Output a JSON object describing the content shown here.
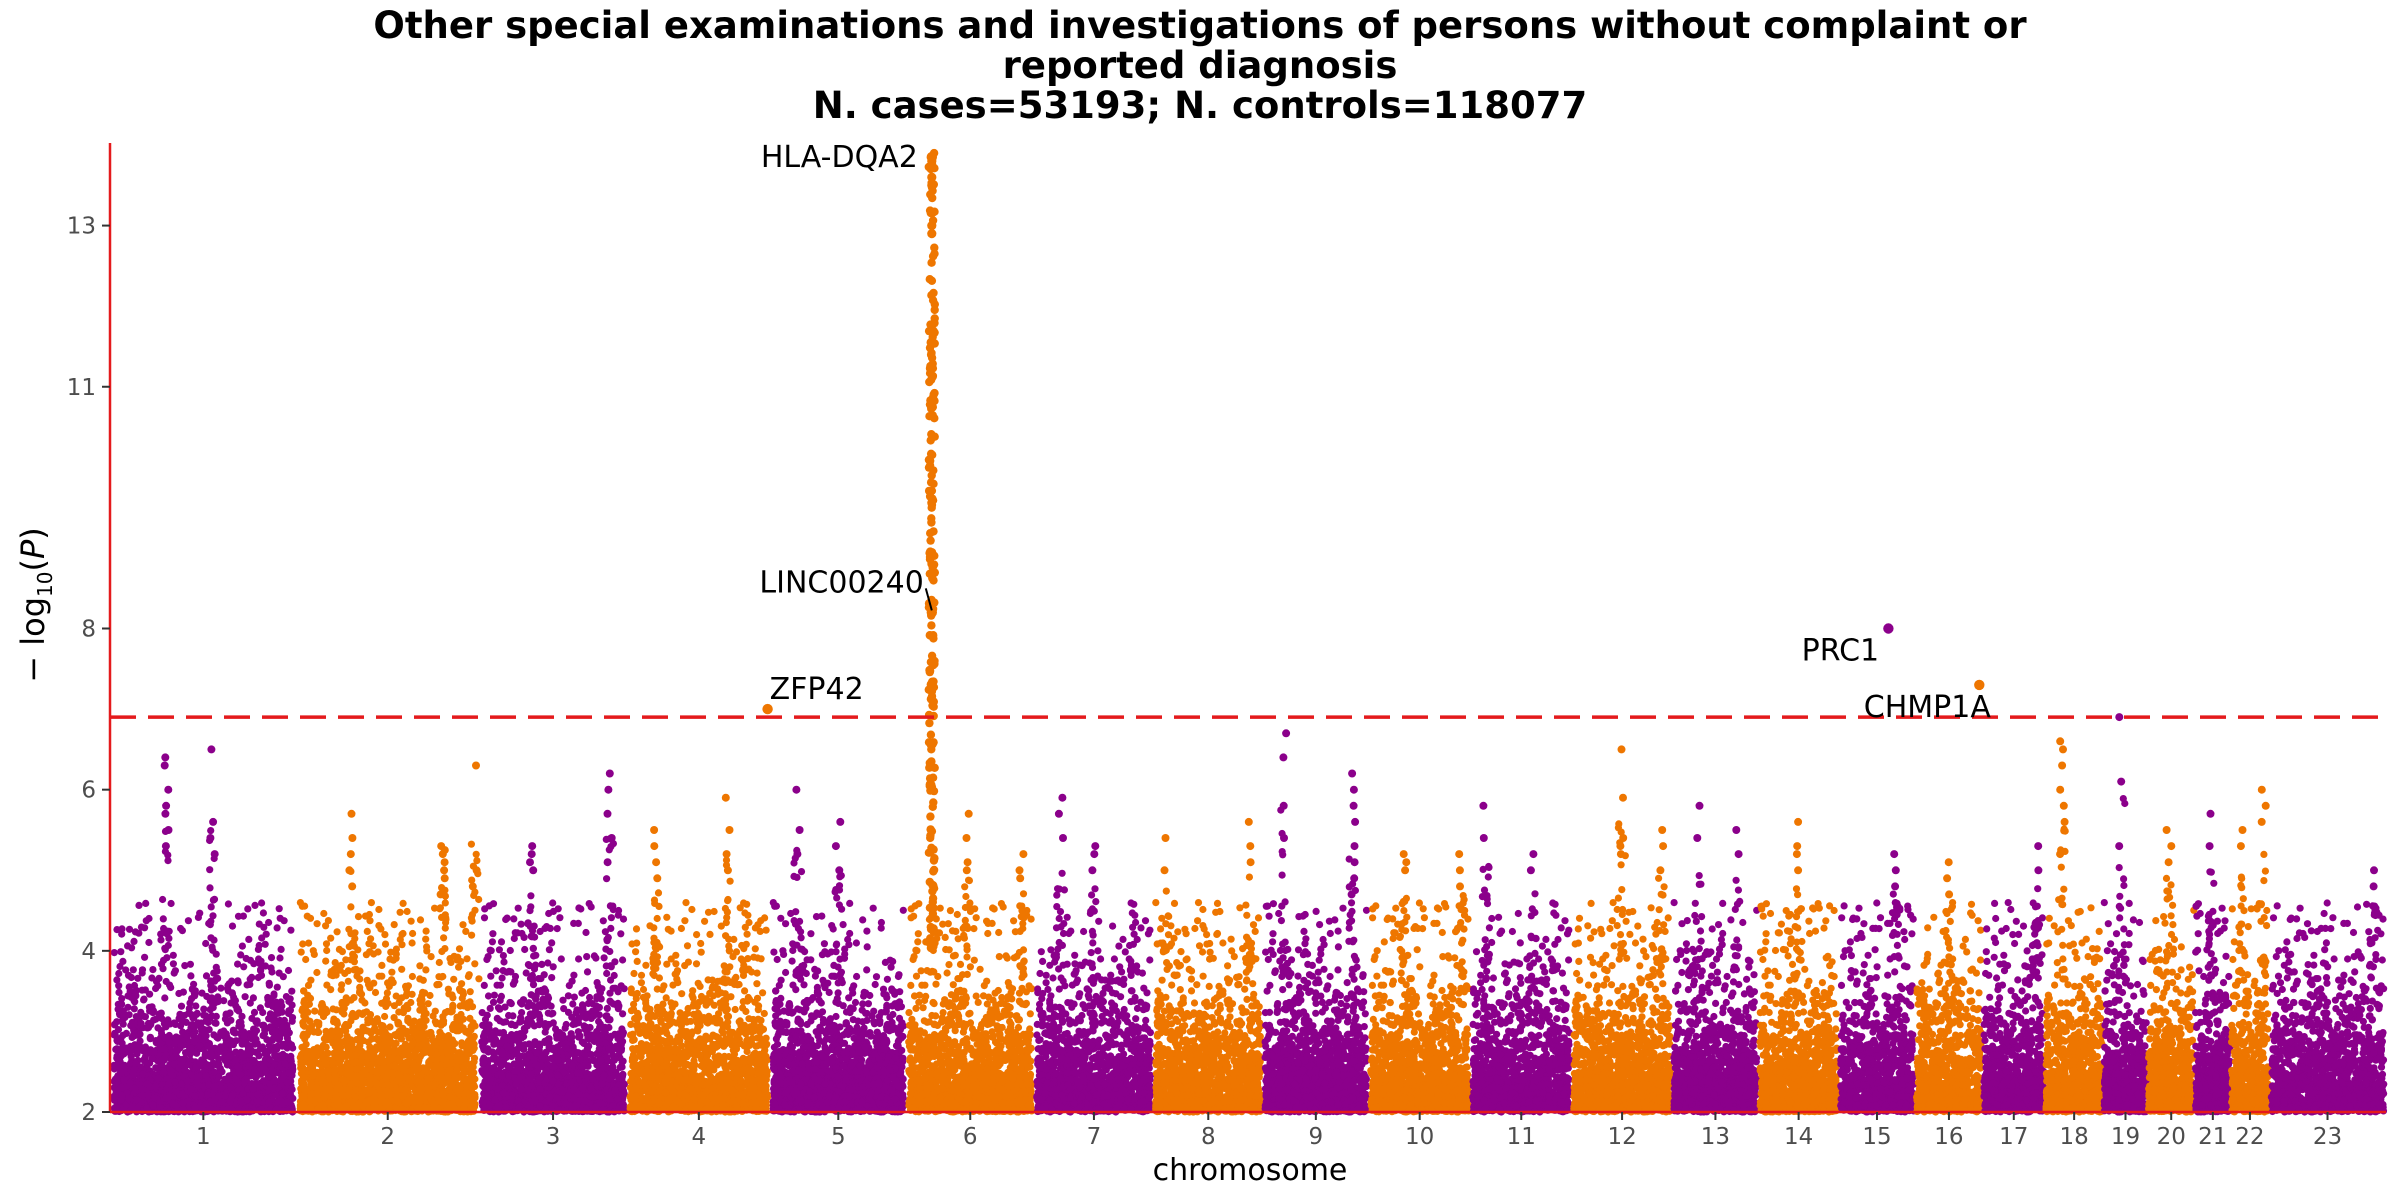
{
  "chart_data": {
    "type": "scatter",
    "title": [
      "Other special examinations and investigations of persons without complaint or",
      "reported diagnosis",
      "N. cases=53193; N. controls=118077"
    ],
    "xlabel": "chromosome",
    "ylabel": "−log10(P)",
    "ylim": [
      2,
      14
    ],
    "y_ticks": [
      2,
      4,
      6,
      8,
      11,
      13
    ],
    "significance_threshold": 6.9,
    "grid": false,
    "legend": "none",
    "colors": {
      "odd": "#8b008b",
      "even": "#ee7600",
      "threshold": "#e41a1c",
      "axis": "#e41a1c"
    },
    "chromosomes": [
      "1",
      "2",
      "3",
      "4",
      "5",
      "6",
      "7",
      "8",
      "9",
      "10",
      "11",
      "12",
      "13",
      "14",
      "15",
      "16",
      "17",
      "18",
      "19",
      "20",
      "21",
      "22",
      "23"
    ],
    "chromosome_widths": [
      249,
      243,
      198,
      191,
      181,
      171,
      159,
      146,
      141,
      136,
      135,
      134,
      115,
      107,
      102,
      90,
      83,
      78,
      59,
      63,
      48,
      51,
      156
    ],
    "peak_loci": [
      {
        "chr": "1",
        "pos": 0.3,
        "values": [
          5.5,
          5.8,
          6.0,
          6.3,
          6.4,
          5.7,
          5.3
        ]
      },
      {
        "chr": "1",
        "pos": 0.55,
        "values": [
          6.5,
          5.6,
          5.4,
          5.2
        ]
      },
      {
        "chr": "2",
        "pos": 0.3,
        "values": [
          5.7,
          5.4,
          5.2,
          5.0,
          4.8
        ]
      },
      {
        "chr": "2",
        "pos": 0.8,
        "values": [
          5.3,
          5.25,
          5.2,
          5.1,
          5.0,
          4.9,
          4.7
        ]
      },
      {
        "chr": "2",
        "pos": 0.98,
        "values": [
          6.3,
          5.0,
          4.8
        ]
      },
      {
        "chr": "3",
        "pos": 0.35,
        "values": [
          5.3,
          5.2,
          5.1,
          5.0
        ]
      },
      {
        "chr": "3",
        "pos": 0.88,
        "values": [
          6.2,
          6.0,
          5.7,
          5.4,
          5.1
        ]
      },
      {
        "chr": "4",
        "pos": 0.2,
        "values": [
          5.5,
          5.3,
          5.1,
          4.9
        ]
      },
      {
        "chr": "4",
        "pos": 0.7,
        "values": [
          5.9,
          5.5,
          5.2,
          5.0
        ]
      },
      {
        "chr": "5",
        "pos": 0.2,
        "values": [
          6.0,
          5.5,
          5.2
        ]
      },
      {
        "chr": "5",
        "pos": 0.5,
        "values": [
          5.6,
          5.3,
          5.0
        ]
      },
      {
        "chr": "6",
        "pos": 0.47,
        "values": [
          5.7,
          5.4,
          5.1,
          5.0
        ]
      },
      {
        "chr": "6",
        "pos": 0.9,
        "values": [
          5.2,
          5.0,
          4.9
        ]
      },
      {
        "chr": "7",
        "pos": 0.22,
        "values": [
          5.9,
          5.7,
          5.4
        ]
      },
      {
        "chr": "7",
        "pos": 0.5,
        "values": [
          5.3,
          5.2,
          5.0
        ]
      },
      {
        "chr": "8",
        "pos": 0.12,
        "values": [
          5.4,
          5.0
        ]
      },
      {
        "chr": "8",
        "pos": 0.88,
        "values": [
          5.6,
          5.3,
          5.1
        ]
      },
      {
        "chr": "9",
        "pos": 0.2,
        "values": [
          6.7,
          6.4,
          5.8,
          5.4
        ]
      },
      {
        "chr": "9",
        "pos": 0.85,
        "values": [
          6.2,
          6.0,
          5.8,
          5.6,
          5.3,
          5.1,
          4.9,
          4.7
        ]
      },
      {
        "chr": "10",
        "pos": 0.35,
        "values": [
          5.2,
          5.1,
          5.0
        ]
      },
      {
        "chr": "10",
        "pos": 0.9,
        "values": [
          5.2,
          5.0,
          4.8
        ]
      },
      {
        "chr": "11",
        "pos": 0.15,
        "values": [
          5.8,
          5.4
        ]
      },
      {
        "chr": "11",
        "pos": 0.62,
        "values": [
          5.2,
          5.0
        ]
      },
      {
        "chr": "12",
        "pos": 0.5,
        "values": [
          6.5,
          5.9,
          5.4,
          5.3,
          5.2
        ]
      },
      {
        "chr": "12",
        "pos": 0.9,
        "values": [
          5.5,
          5.3,
          5.0
        ]
      },
      {
        "chr": "13",
        "pos": 0.3,
        "values": [
          5.8,
          5.4
        ]
      },
      {
        "chr": "13",
        "pos": 0.75,
        "values": [
          5.5,
          5.2
        ]
      },
      {
        "chr": "14",
        "pos": 0.5,
        "values": [
          5.6,
          5.3,
          5.2,
          5.0
        ]
      },
      {
        "chr": "15",
        "pos": 0.75,
        "values": [
          5.2,
          5.0,
          4.8
        ]
      },
      {
        "chr": "16",
        "pos": 0.5,
        "values": [
          5.1,
          4.9,
          4.7
        ]
      },
      {
        "chr": "17",
        "pos": 0.9,
        "values": [
          5.3,
          5.0
        ]
      },
      {
        "chr": "18",
        "pos": 0.3,
        "values": [
          6.6,
          6.5,
          6.3,
          6.0,
          5.8,
          5.6,
          5.2
        ]
      },
      {
        "chr": "19",
        "pos": 0.4,
        "values": [
          6.9,
          6.1,
          5.3
        ]
      },
      {
        "chr": "20",
        "pos": 0.45,
        "values": [
          5.5,
          5.3,
          5.1
        ]
      },
      {
        "chr": "21",
        "pos": 0.45,
        "values": [
          5.7,
          5.3
        ]
      },
      {
        "chr": "22",
        "pos": 0.3,
        "values": [
          5.5,
          5.3
        ]
      },
      {
        "chr": "22",
        "pos": 0.85,
        "values": [
          6.0,
          5.8,
          5.6
        ]
      },
      {
        "chr": "23",
        "pos": 0.9,
        "values": [
          5.0,
          4.8
        ]
      }
    ],
    "hla_peak": {
      "chr": "6",
      "pos": 0.2,
      "max": 13.9
    },
    "labeled_points": [
      {
        "gene": "HLA-DQA2",
        "chr": "6",
        "pos": 0.2,
        "value": 13.85
      },
      {
        "gene": "LINC00240",
        "chr": "6",
        "pos": 0.2,
        "value": 8.2
      },
      {
        "gene": "ZFP42",
        "chr": "4",
        "pos": 0.98,
        "value": 7.0
      },
      {
        "gene": "PRC1",
        "chr": "15",
        "pos": 0.65,
        "value": 8.0
      },
      {
        "gene": "CHMP1A",
        "chr": "16",
        "pos": 0.95,
        "value": 7.3
      }
    ]
  }
}
